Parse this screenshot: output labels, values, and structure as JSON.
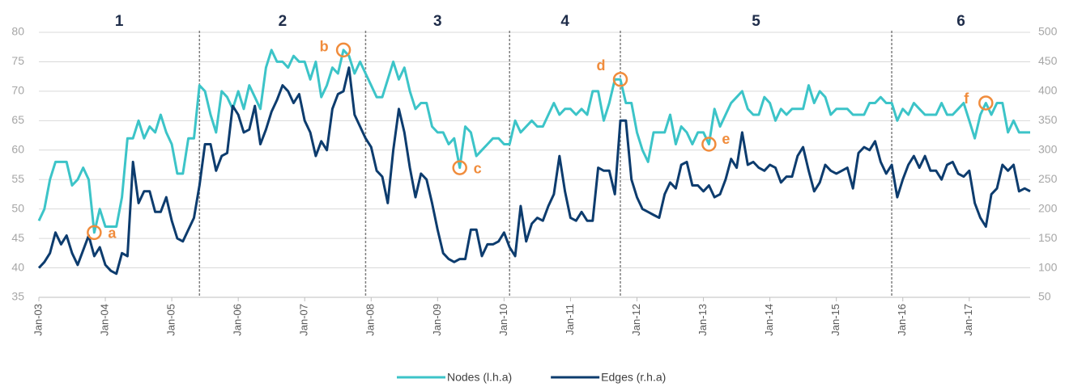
{
  "chart_data": {
    "type": "line",
    "categories": [
      "Jan-03",
      null,
      null,
      null,
      null,
      null,
      null,
      null,
      null,
      null,
      null,
      null,
      "Jan-04",
      null,
      null,
      null,
      null,
      null,
      null,
      null,
      null,
      null,
      null,
      null,
      "Jan-05",
      null,
      null,
      null,
      null,
      null,
      null,
      null,
      null,
      null,
      null,
      null,
      "Jan-06",
      null,
      null,
      null,
      null,
      null,
      null,
      null,
      null,
      null,
      null,
      null,
      "Jan-07",
      null,
      null,
      null,
      null,
      null,
      null,
      null,
      null,
      null,
      null,
      null,
      "Jan-08",
      null,
      null,
      null,
      null,
      null,
      null,
      null,
      null,
      null,
      null,
      null,
      "Jan-09",
      null,
      null,
      null,
      null,
      null,
      null,
      null,
      null,
      null,
      null,
      null,
      "Jan-10",
      null,
      null,
      null,
      null,
      null,
      null,
      null,
      null,
      null,
      null,
      null,
      "Jan-11",
      null,
      null,
      null,
      null,
      null,
      null,
      null,
      null,
      null,
      null,
      null,
      "Jan-12",
      null,
      null,
      null,
      null,
      null,
      null,
      null,
      null,
      null,
      null,
      null,
      "Jan-13",
      null,
      null,
      null,
      null,
      null,
      null,
      null,
      null,
      null,
      null,
      null,
      "Jan-14",
      null,
      null,
      null,
      null,
      null,
      null,
      null,
      null,
      null,
      null,
      null,
      "Jan-15",
      null,
      null,
      null,
      null,
      null,
      null,
      null,
      null,
      null,
      null,
      null,
      "Jan-16",
      null,
      null,
      null,
      null,
      null,
      null,
      null,
      null,
      null,
      null,
      null,
      "Jan-17",
      null,
      null,
      null,
      null,
      null,
      null,
      null,
      null,
      null,
      null,
      null
    ],
    "series": [
      {
        "name": "Nodes (l.h.a)",
        "color": "#3cc4c8",
        "values": [
          48,
          50,
          55,
          58,
          58,
          58,
          54,
          55,
          57,
          55,
          46,
          50,
          47,
          47,
          47,
          52,
          62,
          62,
          65,
          62,
          64,
          63,
          66,
          63,
          61,
          56,
          56,
          62,
          62,
          71,
          70,
          66,
          63,
          70,
          69,
          67,
          70,
          67,
          71,
          69,
          67,
          74,
          77,
          75,
          75,
          74,
          76,
          75,
          75,
          72,
          75,
          69,
          71,
          74,
          73,
          77,
          76,
          73,
          75,
          73,
          71,
          69,
          69,
          72,
          75,
          72,
          74,
          70,
          67,
          68,
          68,
          64,
          63,
          63,
          61,
          62,
          57,
          64,
          63,
          59,
          60,
          61,
          62,
          62,
          61,
          61,
          65,
          63,
          64,
          65,
          64,
          64,
          66,
          68,
          66,
          67,
          67,
          66,
          67,
          66,
          70,
          70,
          65,
          68,
          72,
          72,
          68,
          68,
          63,
          60,
          58,
          63,
          63,
          63,
          66,
          61,
          64,
          63,
          61,
          63,
          63,
          61,
          67,
          64,
          66,
          68,
          69,
          70,
          67,
          66,
          66,
          69,
          68,
          65,
          67,
          66,
          67,
          67,
          67,
          71,
          68,
          70,
          69,
          66,
          67,
          67,
          67,
          66,
          66,
          66,
          68,
          68,
          69,
          68,
          68,
          65,
          67,
          66,
          68,
          67,
          66,
          66,
          66,
          68,
          66,
          66,
          67,
          68,
          65,
          62,
          66,
          68,
          66,
          68,
          68,
          63,
          65,
          63,
          63,
          63
        ]
      },
      {
        "name": "Edges (r.h.a)",
        "color": "#0d3c6e",
        "axis": "y2",
        "values": [
          100,
          110,
          125,
          160,
          140,
          155,
          125,
          105,
          130,
          155,
          120,
          135,
          105,
          95,
          90,
          125,
          120,
          280,
          210,
          230,
          230,
          195,
          195,
          220,
          180,
          150,
          145,
          165,
          185,
          240,
          310,
          310,
          265,
          290,
          295,
          375,
          360,
          330,
          335,
          375,
          310,
          335,
          365,
          385,
          410,
          400,
          380,
          395,
          350,
          330,
          290,
          315,
          300,
          370,
          395,
          400,
          440,
          360,
          340,
          320,
          305,
          265,
          255,
          210,
          300,
          370,
          330,
          270,
          220,
          260,
          250,
          210,
          165,
          125,
          115,
          110,
          115,
          115,
          165,
          165,
          120,
          140,
          140,
          145,
          160,
          135,
          120,
          205,
          145,
          175,
          185,
          180,
          205,
          225,
          290,
          230,
          185,
          180,
          195,
          180,
          180,
          270,
          265,
          265,
          225,
          350,
          350,
          250,
          220,
          200,
          195,
          190,
          185,
          225,
          245,
          235,
          275,
          280,
          240,
          240,
          230,
          240,
          220,
          225,
          250,
          285,
          270,
          330,
          275,
          280,
          270,
          265,
          275,
          270,
          245,
          255,
          255,
          290,
          305,
          265,
          230,
          245,
          275,
          265,
          260,
          265,
          270,
          235,
          295,
          305,
          300,
          315,
          280,
          260,
          275,
          220,
          250,
          275,
          290,
          270,
          290,
          265,
          265,
          250,
          275,
          280,
          260,
          255,
          265,
          210,
          185,
          170,
          225,
          235,
          275,
          265,
          275,
          230,
          235,
          230
        ]
      }
    ],
    "ylim": [
      35,
      80
    ],
    "yticks": [
      35,
      40,
      45,
      50,
      55,
      60,
      65,
      70,
      75,
      80
    ],
    "y2lim": [
      50,
      500
    ],
    "y2ticks": [
      50,
      100,
      150,
      200,
      250,
      300,
      350,
      400,
      450,
      500
    ],
    "grid": true,
    "dividers": [
      29,
      59,
      85,
      105,
      154
    ],
    "regions": [
      "1",
      "2",
      "3",
      "4",
      "5",
      "6"
    ],
    "annotations": [
      {
        "label": "a",
        "index": 10
      },
      {
        "label": "b",
        "index": 55
      },
      {
        "label": "c",
        "index": 76
      },
      {
        "label": "d",
        "index": 105
      },
      {
        "label": "e",
        "index": 121
      },
      {
        "label": "f",
        "index": 171
      }
    ],
    "annotation_color": "#f08c3c",
    "legend": "bottom"
  }
}
